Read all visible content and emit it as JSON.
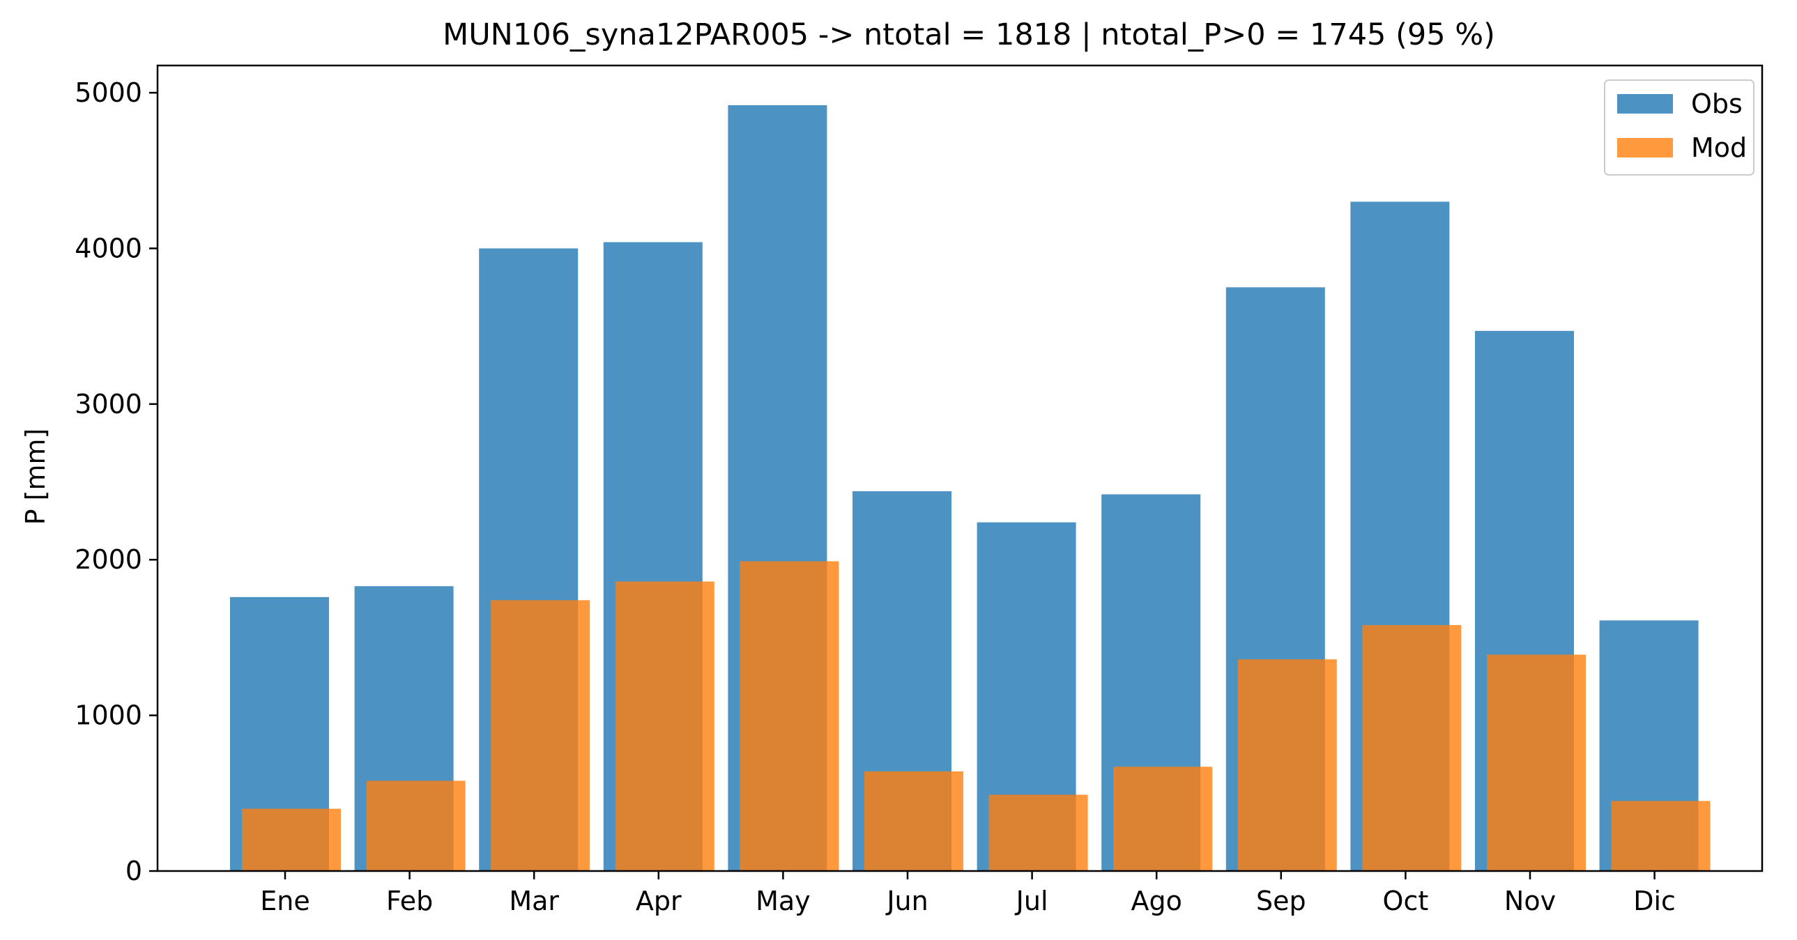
{
  "chart_data": {
    "type": "bar",
    "title": "MUN106_syna12PAR005 -> ntotal = 1818 | ntotal_P>0 = 1745 (95 %)",
    "xlabel": "",
    "ylabel": "P [mm]",
    "categories": [
      "Ene",
      "Feb",
      "Mar",
      "Apr",
      "May",
      "Jun",
      "Jul",
      "Ago",
      "Sep",
      "Oct",
      "Nov",
      "Dic"
    ],
    "series": [
      {
        "name": "Obs",
        "color": "#1f77b4",
        "opacity": 0.8,
        "values": [
          1760,
          1830,
          4000,
          4040,
          4920,
          2440,
          2240,
          2420,
          3750,
          4300,
          3470,
          1610
        ]
      },
      {
        "name": "Mod",
        "color": "#ff7f0e",
        "opacity": 0.8,
        "values": [
          400,
          580,
          1740,
          1860,
          1990,
          640,
          490,
          670,
          1360,
          1580,
          1390,
          450
        ]
      }
    ],
    "ylim": [
      0,
      5175
    ],
    "yticks": [
      0,
      1000,
      2000,
      3000,
      4000,
      5000
    ],
    "grid": false,
    "legend_position": "top-right"
  }
}
